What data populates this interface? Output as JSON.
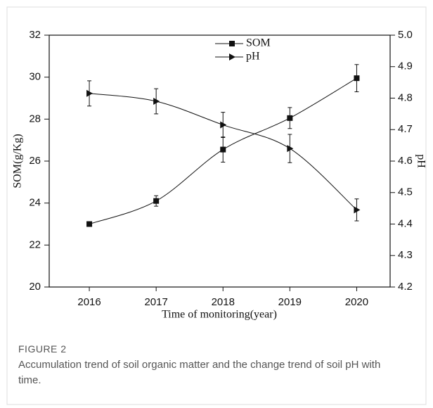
{
  "chart_data": {
    "type": "line",
    "figure_label": "FIGURE 2",
    "caption": "Accumulation trend of soil organic matter and the change trend of soil pH with time.",
    "xlabel": "Time of monitoring(year)",
    "ylabel": "SOM(g/Kg)",
    "y2label": "pH",
    "x": [
      2016,
      2017,
      2018,
      2019,
      2020
    ],
    "xlim": [
      2015.4,
      2020.5
    ],
    "xticks": [
      2016,
      2017,
      2018,
      2019,
      2020
    ],
    "ylim": [
      20,
      32
    ],
    "yticks": [
      20,
      22,
      24,
      26,
      28,
      30,
      32
    ],
    "y2lim": [
      4.2,
      5.0
    ],
    "y2ticks": [
      4.2,
      4.3,
      4.4,
      4.5,
      4.6,
      4.7,
      4.8,
      4.9,
      {
        "value": 5.0,
        "label": "5.0"
      }
    ],
    "legend": "top",
    "series": [
      {
        "name": "SOM",
        "color": "#111111",
        "marker": "square",
        "values": [
          23.0,
          24.1,
          26.55,
          28.05,
          29.95
        ],
        "errors": [
          0.1,
          0.25,
          0.6,
          0.5,
          0.65
        ]
      },
      {
        "name": "pH",
        "color": "#111111",
        "marker": "triangle-right",
        "axis": "y2",
        "values": [
          4.815,
          4.79,
          4.715,
          4.64,
          4.445
        ],
        "errors": [
          0.04,
          0.04,
          0.04,
          0.045,
          0.035
        ]
      }
    ]
  }
}
